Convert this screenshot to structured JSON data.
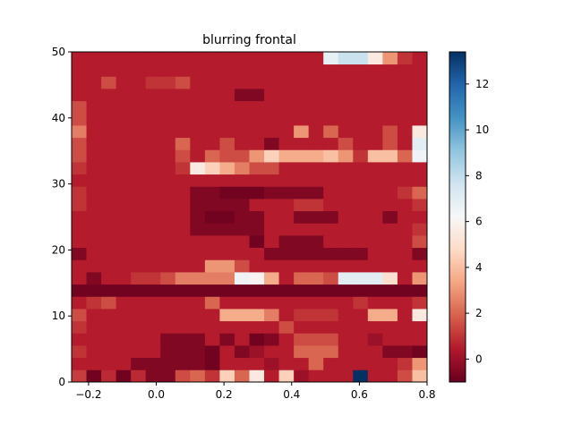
{
  "chart_data": {
    "type": "heatmap",
    "title": "blurring frontal",
    "xlabel": "",
    "ylabel": "",
    "xlim": [
      -0.25,
      0.8
    ],
    "ylim": [
      0,
      50
    ],
    "x_ticks": [
      "−0.2",
      "0.0",
      "0.2",
      "0.4",
      "0.6",
      "0.8"
    ],
    "x_tick_values": [
      -0.2,
      0.0,
      0.2,
      0.4,
      0.6,
      0.8
    ],
    "y_ticks": [
      "0",
      "10",
      "20",
      "30",
      "40",
      "50"
    ],
    "y_tick_values": [
      0,
      10,
      20,
      30,
      40,
      50
    ],
    "colorbar": {
      "colormap": "RdBu",
      "vmin": -1,
      "vmax": 13.4,
      "ticks": [
        "0",
        "2",
        "4",
        "6",
        "8",
        "10",
        "12"
      ],
      "tick_values": [
        0,
        2,
        4,
        6,
        8,
        10,
        12
      ]
    },
    "grid": false,
    "x_edges_range": [
      -0.25,
      0.8
    ],
    "y_edges_range": [
      0,
      50
    ],
    "z": [
      [
        1.2,
        -0.8,
        0.8,
        -0.8,
        0.8,
        -0.5,
        -0.5,
        1.5,
        2.0,
        1.0,
        4.5,
        2.0,
        5.5,
        0.5,
        4.5,
        0.0,
        0.5,
        0.5,
        0.5,
        13.4,
        0.5,
        0.5,
        1.5,
        4.0
      ],
      [
        0.5,
        0.5,
        0.5,
        0.5,
        -0.5,
        -0.5,
        -0.5,
        -0.5,
        -0.5,
        -0.8,
        0.5,
        0.5,
        0.5,
        0.0,
        0.5,
        0.5,
        2.0,
        0.5,
        0.5,
        0.5,
        0.5,
        0.5,
        1.0,
        3.0
      ],
      [
        1.0,
        0.5,
        0.5,
        0.5,
        0.5,
        0.5,
        -0.5,
        -0.5,
        -0.5,
        -0.8,
        0.5,
        -0.5,
        0.0,
        0.5,
        0.5,
        2.0,
        2.0,
        2.0,
        0.5,
        0.5,
        0.5,
        -0.5,
        -0.5,
        -0.8
      ],
      [
        0.5,
        0.5,
        0.5,
        0.5,
        0.5,
        0.5,
        -0.5,
        -0.5,
        -0.5,
        0.5,
        -0.5,
        0.5,
        -0.8,
        -0.5,
        0.5,
        1.5,
        1.5,
        1.5,
        0.5,
        0.5,
        0.0,
        0.5,
        0.5,
        0.5
      ],
      [
        1.0,
        0.5,
        0.5,
        0.5,
        0.5,
        0.5,
        0.5,
        0.5,
        0.5,
        0.5,
        0.5,
        0.5,
        0.5,
        0.5,
        1.5,
        0.5,
        0.5,
        0.5,
        0.5,
        0.5,
        0.5,
        0.5,
        0.5,
        0.5
      ],
      [
        1.5,
        0.5,
        0.5,
        0.5,
        0.5,
        0.5,
        0.5,
        0.5,
        0.5,
        0.5,
        3.5,
        3.5,
        3.5,
        2.5,
        0.5,
        1.0,
        1.0,
        1.0,
        0.5,
        0.5,
        3.5,
        3.5,
        0.5,
        5.5
      ],
      [
        0.5,
        1.0,
        1.5,
        0.5,
        0.5,
        0.5,
        0.5,
        0.5,
        0.5,
        2.0,
        0.5,
        0.5,
        0.5,
        0.5,
        0.5,
        0.5,
        0.5,
        0.5,
        0.5,
        1.0,
        0.5,
        0.5,
        0.5,
        1.0
      ],
      [
        -0.8,
        -0.8,
        -0.8,
        -0.8,
        -0.8,
        -0.8,
        -0.8,
        -0.8,
        -0.8,
        -0.8,
        -0.8,
        -0.8,
        -0.8,
        -0.8,
        -0.8,
        -0.8,
        -0.8,
        -0.8,
        -0.8,
        -0.8,
        -0.8,
        -0.8,
        -0.8,
        -0.8
      ],
      [
        0.5,
        -0.5,
        0.5,
        0.5,
        1.0,
        1.0,
        1.5,
        2.5,
        2.5,
        2.5,
        2.5,
        6.5,
        6.0,
        3.5,
        0.5,
        2.0,
        2.0,
        1.5,
        7.0,
        7.0,
        7.0,
        5.0,
        0.5,
        3.0
      ],
      [
        0.5,
        0.5,
        0.5,
        0.5,
        0.5,
        0.5,
        0.5,
        0.5,
        0.5,
        3.0,
        3.0,
        1.5,
        0.5,
        0.5,
        0.5,
        0.5,
        0.5,
        0.5,
        0.5,
        0.5,
        0.5,
        0.5,
        0.5,
        0.5
      ],
      [
        -0.5,
        0.5,
        0.5,
        0.5,
        0.5,
        0.5,
        0.5,
        0.5,
        0.5,
        0.5,
        0.5,
        0.5,
        0.5,
        -0.5,
        -0.5,
        -0.5,
        -0.5,
        -0.5,
        -0.5,
        -0.5,
        0.5,
        0.5,
        0.5,
        -0.5
      ],
      [
        0.5,
        0.5,
        0.5,
        0.5,
        0.5,
        0.5,
        0.5,
        0.5,
        0.5,
        0.5,
        0.5,
        0.5,
        -0.8,
        0.5,
        -0.5,
        -0.5,
        -0.5,
        0.5,
        0.5,
        0.5,
        0.5,
        0.5,
        0.5,
        1.5
      ],
      [
        0.5,
        0.5,
        0.5,
        0.5,
        0.5,
        0.5,
        0.5,
        0.5,
        -0.5,
        -0.5,
        -0.5,
        -0.5,
        -0.5,
        0.5,
        0.5,
        0.5,
        0.5,
        0.5,
        0.5,
        0.5,
        0.5,
        0.5,
        0.5,
        1.0
      ],
      [
        0.5,
        0.5,
        0.5,
        0.5,
        0.5,
        0.5,
        0.5,
        0.5,
        -0.5,
        -0.8,
        -0.8,
        -0.5,
        -0.5,
        0.5,
        0.5,
        -0.5,
        -0.5,
        -0.5,
        0.5,
        0.5,
        0.5,
        -0.5,
        0.5,
        0.5
      ],
      [
        1.0,
        0.5,
        0.5,
        0.5,
        0.5,
        0.5,
        0.5,
        0.5,
        -0.5,
        -0.5,
        -0.5,
        -0.5,
        0.5,
        0.5,
        0.5,
        1.0,
        1.0,
        0.5,
        0.5,
        0.5,
        0.5,
        0.5,
        0.5,
        1.0
      ],
      [
        1.0,
        0.5,
        0.5,
        0.5,
        0.5,
        0.5,
        0.5,
        0.5,
        -0.5,
        -0.5,
        -0.8,
        -0.8,
        -0.8,
        -0.5,
        -0.5,
        -0.5,
        -0.5,
        0.5,
        0.5,
        0.5,
        0.5,
        0.5,
        1.0,
        2.0
      ],
      [
        0.5,
        0.5,
        0.5,
        0.5,
        0.5,
        0.5,
        0.5,
        0.5,
        0.5,
        0.5,
        0.5,
        0.5,
        0.5,
        0.5,
        0.5,
        0.5,
        0.5,
        0.5,
        0.5,
        0.5,
        0.5,
        0.5,
        0.5,
        0.5
      ],
      [
        1.0,
        0.5,
        0.5,
        0.5,
        0.5,
        0.5,
        0.5,
        1.0,
        5.5,
        4.5,
        3.5,
        2.5,
        1.5,
        1.5,
        0.5,
        0.5,
        0.5,
        0.5,
        0.5,
        0.5,
        0.5,
        0.5,
        0.5,
        0.5
      ],
      [
        1.5,
        0.5,
        0.5,
        0.5,
        0.5,
        0.5,
        0.5,
        1.5,
        0.5,
        2.0,
        1.5,
        1.5,
        3.0,
        4.5,
        3.5,
        3.5,
        3.5,
        4.0,
        3.0,
        1.0,
        4.0,
        4.0,
        2.0,
        6.5
      ],
      [
        1.5,
        0.5,
        0.5,
        0.5,
        0.5,
        0.5,
        0.5,
        2.0,
        0.5,
        0.5,
        1.5,
        0.5,
        0.5,
        -0.5,
        0.5,
        0.5,
        0.5,
        0.5,
        1.5,
        0.5,
        0.5,
        1.5,
        0.5,
        7.0
      ],
      [
        2.5,
        0.5,
        0.5,
        0.5,
        0.5,
        0.5,
        0.5,
        0.5,
        0.5,
        0.5,
        0.5,
        0.5,
        0.5,
        0.5,
        0.5,
        3.0,
        0.5,
        2.0,
        0.5,
        0.5,
        0.5,
        1.5,
        0.5,
        5.5
      ],
      [
        1.5,
        0.5,
        0.5,
        0.5,
        0.5,
        0.5,
        0.5,
        0.5,
        0.5,
        0.5,
        0.5,
        0.5,
        0.5,
        0.5,
        0.5,
        0.5,
        0.5,
        0.5,
        0.5,
        0.5,
        0.5,
        0.5,
        0.5,
        0.5
      ],
      [
        1.5,
        0.5,
        0.5,
        0.5,
        0.5,
        0.5,
        0.5,
        0.5,
        0.5,
        0.5,
        0.5,
        0.5,
        0.5,
        0.5,
        0.5,
        0.5,
        0.5,
        0.5,
        0.5,
        0.5,
        0.5,
        0.5,
        0.5,
        0.5
      ],
      [
        0.5,
        0.5,
        0.5,
        0.5,
        0.5,
        0.5,
        0.5,
        0.5,
        0.5,
        0.5,
        0.5,
        -0.5,
        -0.5,
        0.5,
        0.5,
        0.5,
        0.5,
        0.5,
        0.5,
        0.5,
        0.5,
        0.5,
        0.5,
        0.5
      ],
      [
        0.5,
        0.5,
        1.5,
        0.5,
        0.5,
        1.0,
        1.0,
        1.5,
        0.5,
        0.5,
        0.5,
        0.5,
        0.5,
        0.5,
        0.5,
        0.5,
        0.5,
        0.5,
        0.5,
        0.5,
        0.5,
        0.5,
        0.5,
        0.5
      ],
      [
        0.5,
        0.5,
        0.5,
        0.5,
        0.5,
        0.5,
        0.5,
        0.5,
        0.5,
        0.5,
        0.5,
        0.5,
        0.5,
        0.5,
        0.5,
        0.5,
        0.5,
        0.5,
        0.5,
        0.5,
        0.5,
        0.5,
        0.5,
        0.5
      ],
      [
        0.5,
        0.5,
        0.5,
        0.5,
        0.5,
        0.5,
        0.5,
        0.5,
        0.5,
        0.5,
        0.5,
        0.5,
        0.5,
        0.5,
        0.5,
        0.5,
        0.5,
        6.8,
        7.8,
        7.8,
        5.5,
        3.0,
        1.0,
        0.5
      ]
    ]
  }
}
